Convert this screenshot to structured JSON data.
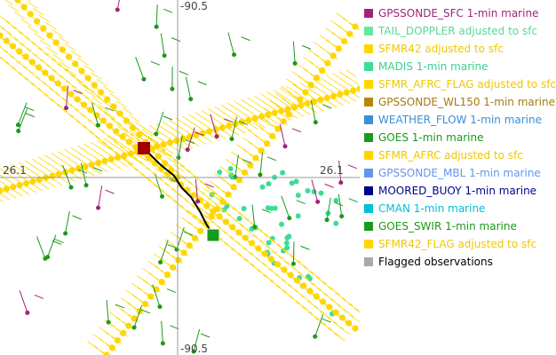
{
  "map": {
    "top_longitude": "-90.5",
    "bottom_longitude": "-90.5",
    "left_latitude": "26.1",
    "right_latitude": "26.1"
  },
  "legend": [
    {
      "label": "GPSSONDE_SFC 1-min marine",
      "color": "#a0237a",
      "text_color": "#a0237a"
    },
    {
      "label": "TAIL_DOPPLER adjusted to sfc",
      "color": "#66e6a0",
      "text_color": "#5ad898"
    },
    {
      "label": "SFMR42 adjusted to sfc",
      "color": "#ffd700",
      "text_color": "#f0c800"
    },
    {
      "label": "MADIS 1-min marine",
      "color": "#3ddc97",
      "text_color": "#3ccf90"
    },
    {
      "label": "SFMR_AFRC_FLAG adjusted to sfc",
      "color": "#ffd700",
      "text_color": "#f0c800"
    },
    {
      "label": "GPSSONDE_WL150 1-min marine",
      "color": "#b8860b",
      "text_color": "#a87a10"
    },
    {
      "label": "WEATHER_FLOW 1-min marine",
      "color": "#3a8fd8",
      "text_color": "#3a8fd8"
    },
    {
      "label": "GOES 1-min marine",
      "color": "#1a9a1a",
      "text_color": "#1a9a1a"
    },
    {
      "label": "SFMR_AFRC adjusted to sfc",
      "color": "#ffd700",
      "text_color": "#f0c800"
    },
    {
      "label": "GPSSONDE_MBL 1-min marine",
      "color": "#6495ed",
      "text_color": "#6495ed"
    },
    {
      "label": "MOORED_BUOY 1-min marine",
      "color": "#00008b",
      "text_color": "#00008b"
    },
    {
      "label": "CMAN 1-min marine",
      "color": "#00bfd8",
      "text_color": "#00bfd8"
    },
    {
      "label": "GOES_SWIR 1-min marine",
      "color": "#1a9a1a",
      "text_color": "#1a9a1a"
    },
    {
      "label": "SFMR42_FLAG adjusted to sfc",
      "color": "#ffd700",
      "text_color": "#f0c800"
    },
    {
      "label": "Flagged observations",
      "color": "#aaaaaa",
      "text_color": "#000000"
    }
  ]
}
